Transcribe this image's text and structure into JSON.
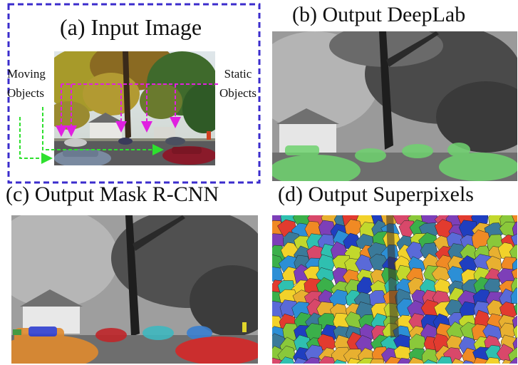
{
  "figure": {
    "panel_a": {
      "title": "(a) Input Image",
      "moving_label_line1": "Moving",
      "moving_label_line2": "Objects",
      "static_label_line1": "Static",
      "static_label_line2": "Objects",
      "border_color": "#3b2ccc",
      "moving_arrow_color": "#2ee02e",
      "static_arrow_color": "#e020e0"
    },
    "panel_b": {
      "title": "(b) Output DeepLab",
      "overlay_color": "#6fd36f"
    },
    "panel_c": {
      "title": "(c) Output Mask R-CNN",
      "instance_colors": [
        "#e08a2e",
        "#c0262a",
        "#2f3fd0",
        "#3fb8c0",
        "#3a7fd0",
        "#d62828"
      ]
    },
    "panel_d": {
      "title": "(d) Output Superpixels"
    }
  }
}
